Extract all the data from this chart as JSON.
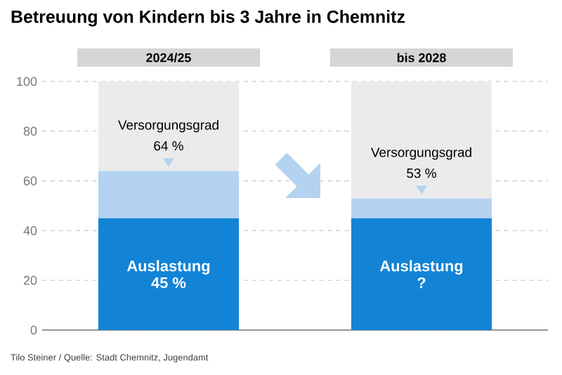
{
  "chart_data": {
    "type": "bar",
    "title": "Betreuung von Kindern bis 3 Jahre in Chemnitz",
    "categories": [
      "2024/25",
      "bis 2028"
    ],
    "stacked": true,
    "series": [
      {
        "name": "Auslastung",
        "color": "#1383d6",
        "values": [
          45,
          45
        ],
        "value_labels": [
          "45 %",
          "?"
        ]
      },
      {
        "name": "Versorgungsgrad",
        "color": "#b3d3f0",
        "values": [
          19,
          8
        ]
      },
      {
        "color": "#ebebeb",
        "values": [
          36,
          47
        ]
      }
    ],
    "ylim": [
      0,
      100
    ],
    "yticks": [
      0,
      20,
      40,
      60,
      80,
      100
    ],
    "grid": "y",
    "legend": false,
    "annotations": [
      {
        "text": "64 %",
        "x": "2024/25",
        "y": 64
      },
      {
        "text": "53 %",
        "x": "bis 2028",
        "y": 53
      },
      "Tilo Steiner / Quelle: Stadt Chemnitz, Jugendamt"
    ]
  }
}
